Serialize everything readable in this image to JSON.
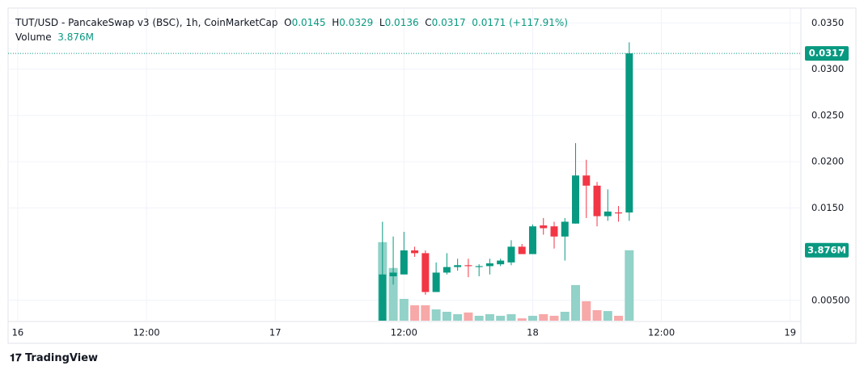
{
  "chart_data": {
    "type": "candlestick",
    "title": "TUT/USD - PancakeSwap v3 (BSC), 1h, CoinMarketCap",
    "ohlc_labels": [
      "O",
      "H",
      "L",
      "C"
    ],
    "change": "0.0171",
    "change_pct": "(+117.91%)",
    "volume_label": "Volume",
    "brand": "TradingView",
    "up_color": "#089981",
    "down_color": "#f23645",
    "up_volume_color": "#92d2c8",
    "down_volume_color": "#f7a8a8",
    "x": [
      34,
      35,
      36,
      37,
      38,
      39,
      40,
      41,
      42,
      43,
      44,
      45,
      46,
      47,
      48,
      49,
      50,
      51,
      52,
      53,
      54,
      55,
      56,
      57
    ],
    "xlim": [
      -0.9,
      73
    ],
    "xticks": [
      {
        "value": 0,
        "label": "16"
      },
      {
        "value": 12,
        "label": "12:00"
      },
      {
        "value": 24,
        "label": "17"
      },
      {
        "value": 36,
        "label": "12:00"
      },
      {
        "value": 48,
        "label": "18"
      },
      {
        "value": 60,
        "label": "12:00"
      },
      {
        "value": 72,
        "label": "19"
      }
    ],
    "ylim": [
      0.0028,
      0.0366
    ],
    "yticks": [
      {
        "value": 0.035,
        "label": "0.0350"
      },
      {
        "value": 0.03,
        "label": "0.0300"
      },
      {
        "value": 0.025,
        "label": "0.0250"
      },
      {
        "value": 0.02,
        "label": "0.0200"
      },
      {
        "value": 0.015,
        "label": "0.0150"
      },
      {
        "value": 0.005,
        "label": "0.00500"
      }
    ],
    "grid": true,
    "open": [
      0.0028,
      0.0076,
      0.0078,
      0.0104,
      0.0101,
      0.0059,
      0.008,
      0.0086,
      0.0088,
      0.0086,
      0.0087,
      0.0089,
      0.0091,
      0.0108,
      0.01,
      0.0131,
      0.013,
      0.0119,
      0.0133,
      0.0185,
      0.0174,
      0.0141,
      0.0145,
      0.0145
    ],
    "high": [
      0.0135,
      0.0119,
      0.0124,
      0.0108,
      0.0104,
      0.0091,
      0.0101,
      0.0095,
      0.0095,
      0.0089,
      0.0095,
      0.0095,
      0.0115,
      0.0111,
      0.0132,
      0.0139,
      0.0135,
      0.0139,
      0.022,
      0.0202,
      0.0178,
      0.017,
      0.0152,
      0.0329
    ],
    "low": [
      0.0028,
      0.0067,
      0.0078,
      0.0097,
      0.0056,
      0.0059,
      0.0078,
      0.0082,
      0.0075,
      0.0076,
      0.0078,
      0.0087,
      0.0088,
      0.01,
      0.01,
      0.0121,
      0.0106,
      0.0093,
      0.0133,
      0.0139,
      0.013,
      0.0136,
      0.0135,
      0.0136
    ],
    "close": [
      0.0078,
      0.008,
      0.0104,
      0.0101,
      0.0059,
      0.008,
      0.0086,
      0.0088,
      0.0087,
      0.0087,
      0.009,
      0.0093,
      0.0108,
      0.01,
      0.013,
      0.0128,
      0.0119,
      0.0135,
      0.0185,
      0.0174,
      0.0141,
      0.0146,
      0.0144,
      0.0317
    ],
    "volume": [
      4.32,
      2.9,
      1.2,
      0.85,
      0.85,
      0.62,
      0.49,
      0.36,
      0.45,
      0.27,
      0.36,
      0.27,
      0.36,
      0.13,
      0.27,
      0.36,
      0.27,
      0.49,
      1.96,
      1.07,
      0.58,
      0.53,
      0.27,
      3.876
    ],
    "volume_value_labels": [
      null,
      null,
      null,
      null,
      null,
      null,
      null,
      null,
      null,
      null,
      null,
      null,
      null,
      null,
      null,
      null,
      null,
      null,
      null,
      null,
      null,
      null,
      null,
      "3.876M"
    ],
    "volume_ylim": [
      0,
      17.2
    ]
  }
}
